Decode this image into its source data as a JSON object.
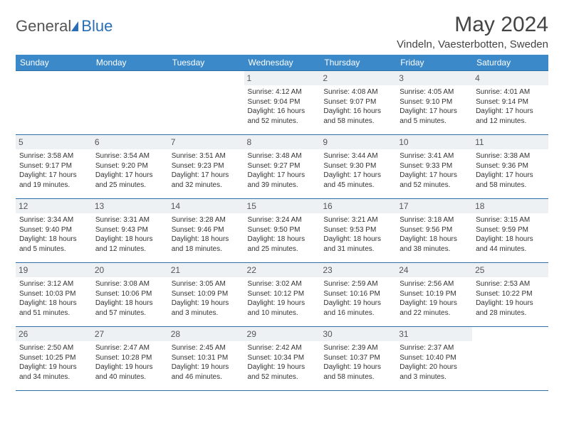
{
  "brand": {
    "part1": "General",
    "part2": "Blue"
  },
  "title": "May 2024",
  "location": "Vindeln, Vaesterbotten, Sweden",
  "header_bg": "#3b89c9",
  "daynum_bg": "#eef1f4",
  "border_color": "#2f6fa8",
  "weekdays": [
    "Sunday",
    "Monday",
    "Tuesday",
    "Wednesday",
    "Thursday",
    "Friday",
    "Saturday"
  ],
  "weeks": [
    [
      null,
      null,
      null,
      {
        "n": "1",
        "sr": "4:12 AM",
        "ss": "9:04 PM",
        "dl": "16 hours and 52 minutes."
      },
      {
        "n": "2",
        "sr": "4:08 AM",
        "ss": "9:07 PM",
        "dl": "16 hours and 58 minutes."
      },
      {
        "n": "3",
        "sr": "4:05 AM",
        "ss": "9:10 PM",
        "dl": "17 hours and 5 minutes."
      },
      {
        "n": "4",
        "sr": "4:01 AM",
        "ss": "9:14 PM",
        "dl": "17 hours and 12 minutes."
      }
    ],
    [
      {
        "n": "5",
        "sr": "3:58 AM",
        "ss": "9:17 PM",
        "dl": "17 hours and 19 minutes."
      },
      {
        "n": "6",
        "sr": "3:54 AM",
        "ss": "9:20 PM",
        "dl": "17 hours and 25 minutes."
      },
      {
        "n": "7",
        "sr": "3:51 AM",
        "ss": "9:23 PM",
        "dl": "17 hours and 32 minutes."
      },
      {
        "n": "8",
        "sr": "3:48 AM",
        "ss": "9:27 PM",
        "dl": "17 hours and 39 minutes."
      },
      {
        "n": "9",
        "sr": "3:44 AM",
        "ss": "9:30 PM",
        "dl": "17 hours and 45 minutes."
      },
      {
        "n": "10",
        "sr": "3:41 AM",
        "ss": "9:33 PM",
        "dl": "17 hours and 52 minutes."
      },
      {
        "n": "11",
        "sr": "3:38 AM",
        "ss": "9:36 PM",
        "dl": "17 hours and 58 minutes."
      }
    ],
    [
      {
        "n": "12",
        "sr": "3:34 AM",
        "ss": "9:40 PM",
        "dl": "18 hours and 5 minutes."
      },
      {
        "n": "13",
        "sr": "3:31 AM",
        "ss": "9:43 PM",
        "dl": "18 hours and 12 minutes."
      },
      {
        "n": "14",
        "sr": "3:28 AM",
        "ss": "9:46 PM",
        "dl": "18 hours and 18 minutes."
      },
      {
        "n": "15",
        "sr": "3:24 AM",
        "ss": "9:50 PM",
        "dl": "18 hours and 25 minutes."
      },
      {
        "n": "16",
        "sr": "3:21 AM",
        "ss": "9:53 PM",
        "dl": "18 hours and 31 minutes."
      },
      {
        "n": "17",
        "sr": "3:18 AM",
        "ss": "9:56 PM",
        "dl": "18 hours and 38 minutes."
      },
      {
        "n": "18",
        "sr": "3:15 AM",
        "ss": "9:59 PM",
        "dl": "18 hours and 44 minutes."
      }
    ],
    [
      {
        "n": "19",
        "sr": "3:12 AM",
        "ss": "10:03 PM",
        "dl": "18 hours and 51 minutes."
      },
      {
        "n": "20",
        "sr": "3:08 AM",
        "ss": "10:06 PM",
        "dl": "18 hours and 57 minutes."
      },
      {
        "n": "21",
        "sr": "3:05 AM",
        "ss": "10:09 PM",
        "dl": "19 hours and 3 minutes."
      },
      {
        "n": "22",
        "sr": "3:02 AM",
        "ss": "10:12 PM",
        "dl": "19 hours and 10 minutes."
      },
      {
        "n": "23",
        "sr": "2:59 AM",
        "ss": "10:16 PM",
        "dl": "19 hours and 16 minutes."
      },
      {
        "n": "24",
        "sr": "2:56 AM",
        "ss": "10:19 PM",
        "dl": "19 hours and 22 minutes."
      },
      {
        "n": "25",
        "sr": "2:53 AM",
        "ss": "10:22 PM",
        "dl": "19 hours and 28 minutes."
      }
    ],
    [
      {
        "n": "26",
        "sr": "2:50 AM",
        "ss": "10:25 PM",
        "dl": "19 hours and 34 minutes."
      },
      {
        "n": "27",
        "sr": "2:47 AM",
        "ss": "10:28 PM",
        "dl": "19 hours and 40 minutes."
      },
      {
        "n": "28",
        "sr": "2:45 AM",
        "ss": "10:31 PM",
        "dl": "19 hours and 46 minutes."
      },
      {
        "n": "29",
        "sr": "2:42 AM",
        "ss": "10:34 PM",
        "dl": "19 hours and 52 minutes."
      },
      {
        "n": "30",
        "sr": "2:39 AM",
        "ss": "10:37 PM",
        "dl": "19 hours and 58 minutes."
      },
      {
        "n": "31",
        "sr": "2:37 AM",
        "ss": "10:40 PM",
        "dl": "20 hours and 3 minutes."
      },
      null
    ]
  ],
  "labels": {
    "sunrise": "Sunrise:",
    "sunset": "Sunset:",
    "daylight": "Daylight:"
  }
}
